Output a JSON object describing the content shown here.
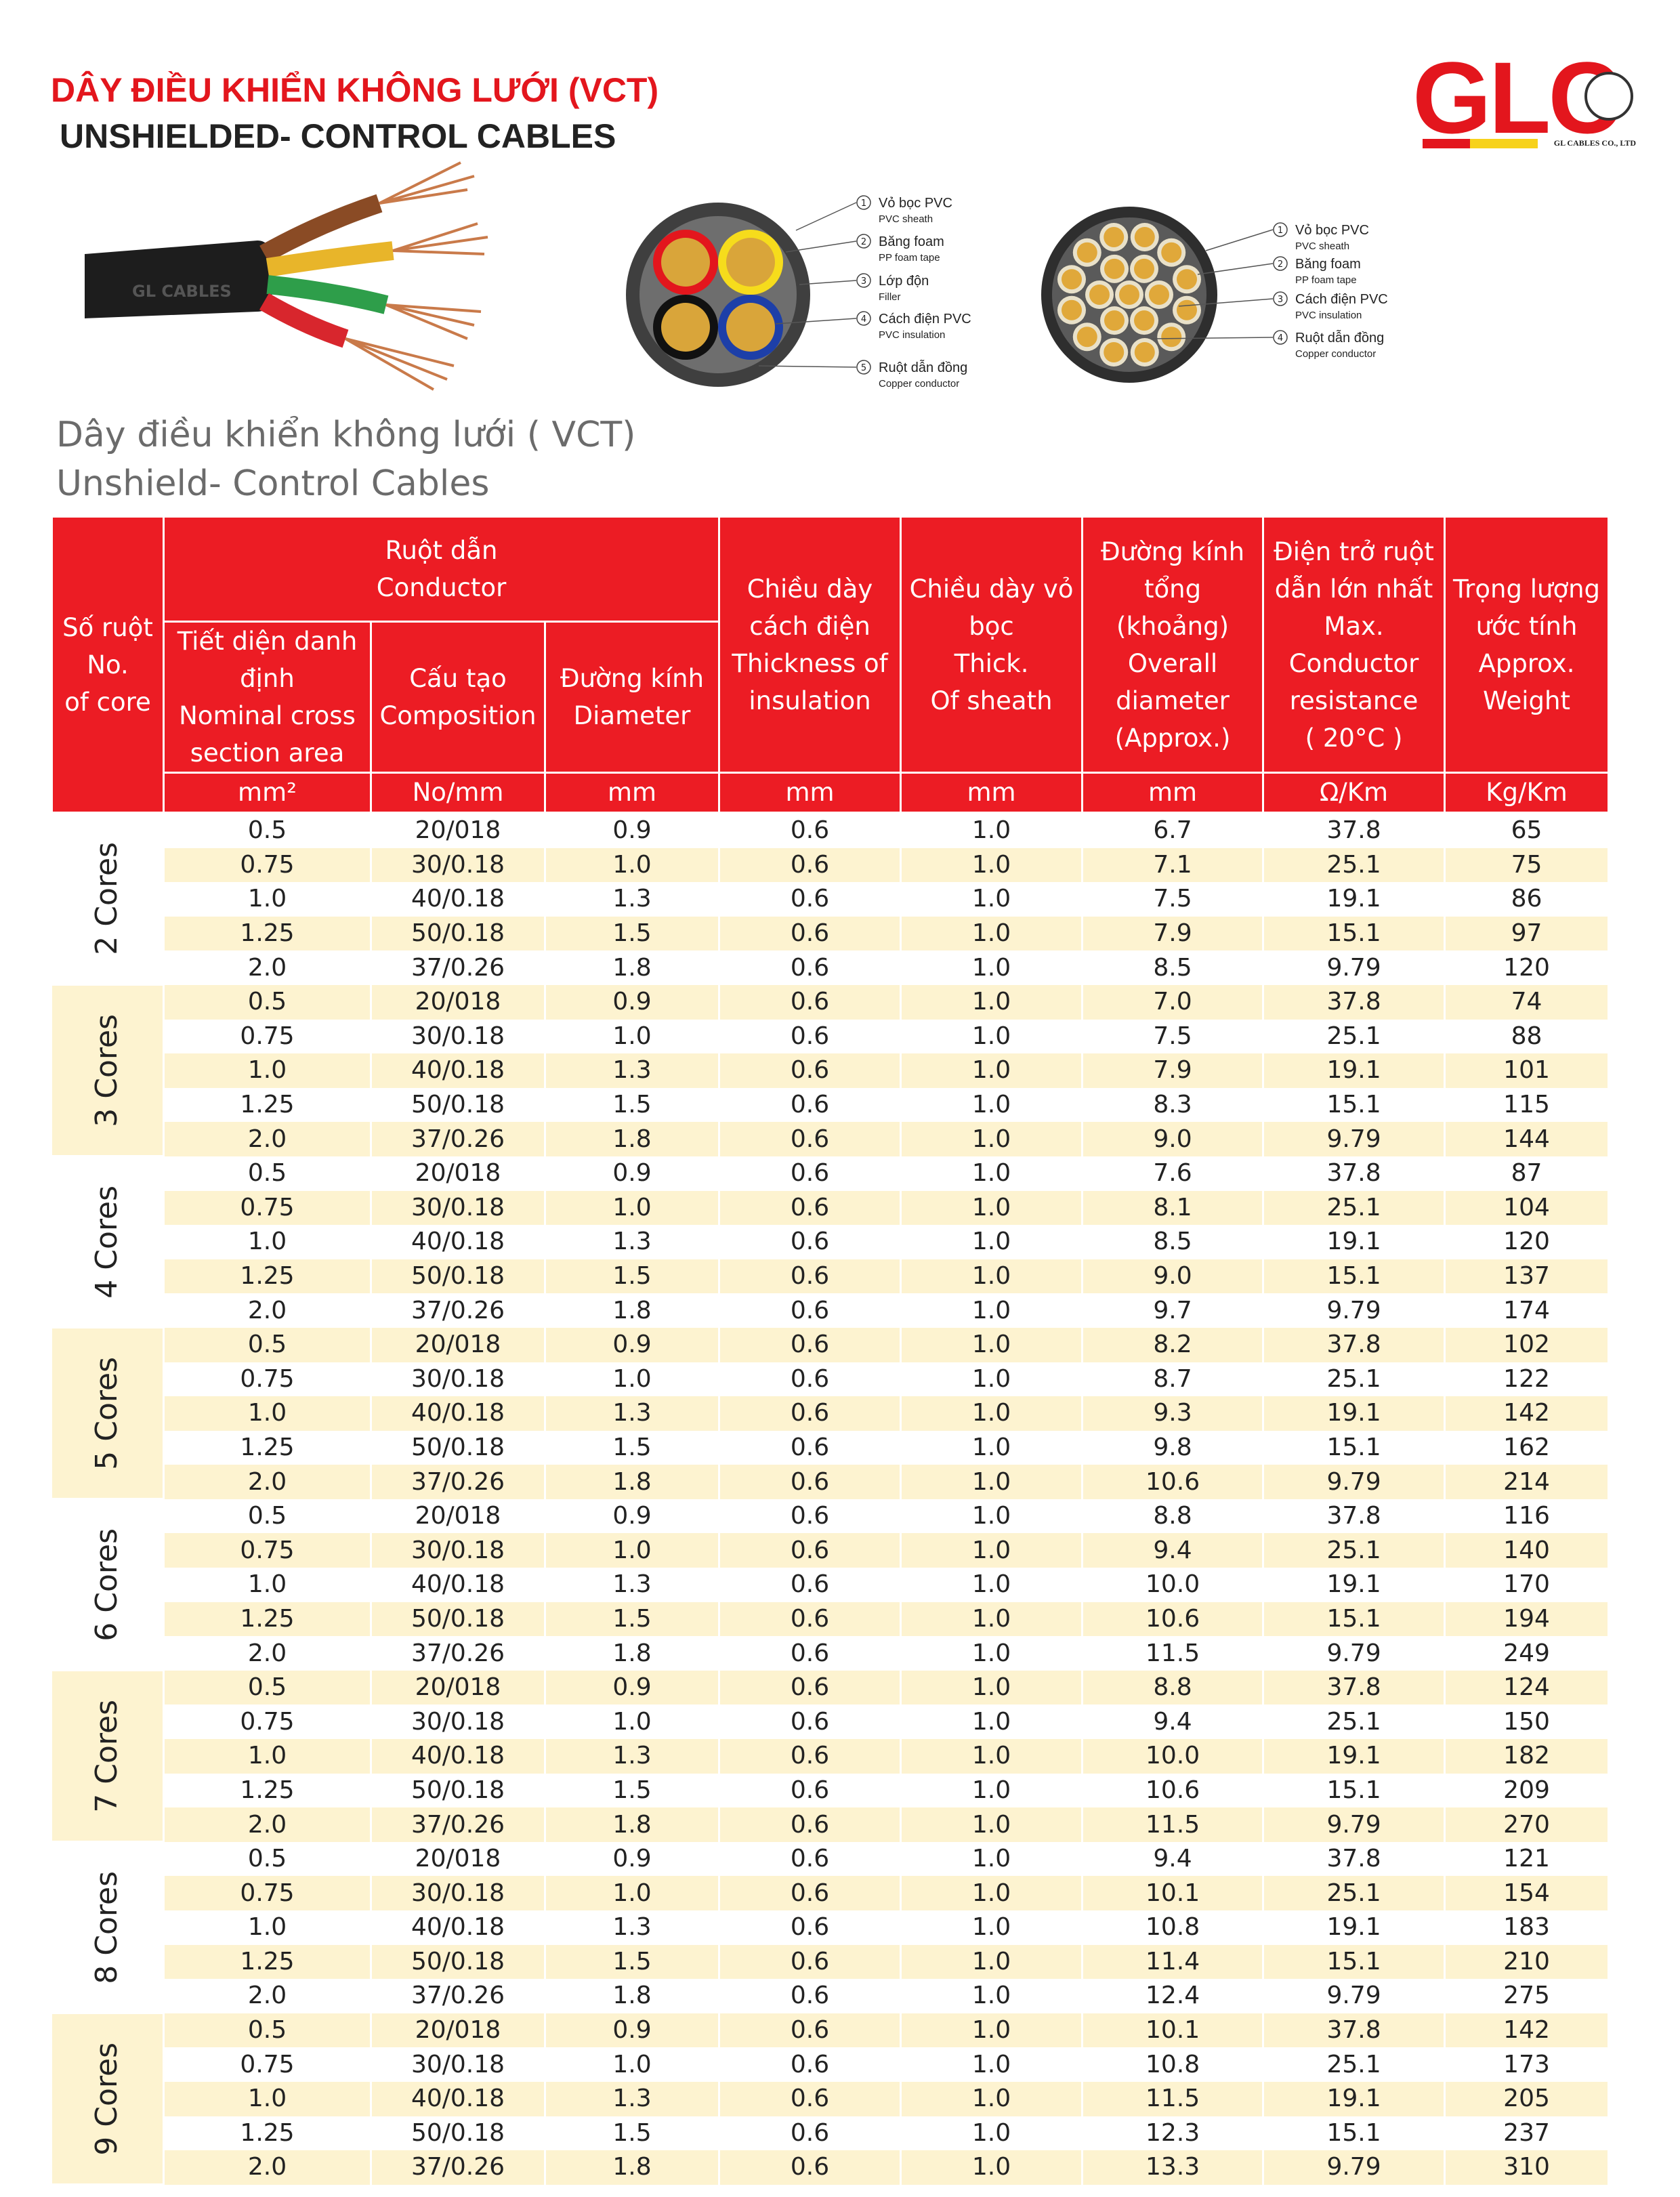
{
  "header": {
    "title_vi": "DÂY ĐIỀU KHIỂN KHÔNG LƯỚI (VCT)",
    "title_en": "UNSHIELDED- CONTROL CABLES"
  },
  "logo": {
    "name": "GLC",
    "company": "GL CABLES CO., LTD"
  },
  "cable_photo": {
    "print": "GL CABLES"
  },
  "diagrams": [
    {
      "labels": [
        {
          "num": "1",
          "vi": "Vỏ bọc PVC",
          "en": "PVC sheath"
        },
        {
          "num": "2",
          "vi": "Băng foam",
          "en": "PP foam tape"
        },
        {
          "num": "3",
          "vi": "Lớp độn",
          "en": "Filler"
        },
        {
          "num": "4",
          "vi": "Cách điện PVC",
          "en": "PVC insulation"
        },
        {
          "num": "5",
          "vi": "Ruột dẫn đồng",
          "en": "Copper conductor"
        }
      ]
    },
    {
      "labels": [
        {
          "num": "1",
          "vi": "Vỏ bọc PVC",
          "en": "PVC sheath"
        },
        {
          "num": "2",
          "vi": "Băng foam",
          "en": "PP foam tape"
        },
        {
          "num": "3",
          "vi": "Cách điện PVC",
          "en": "PVC insulation"
        },
        {
          "num": "4",
          "vi": "Ruột dẫn đồng",
          "en": "Copper conductor"
        }
      ]
    }
  ],
  "subtitle": {
    "vi": "Dây điều khiển không lưới ( VCT)",
    "en": "Unshield- Control Cables"
  },
  "table": {
    "headers": {
      "core": [
        "Số ruột",
        "No.",
        "of core"
      ],
      "conductor": [
        "Ruột dẫn",
        "Conductor"
      ],
      "area": [
        "Tiết diện danh",
        "định",
        "Nominal cross",
        "section area"
      ],
      "composition": [
        "Cấu tạo",
        "Composition"
      ],
      "diameter": [
        "Đường kính",
        "Diameter"
      ],
      "insulation": [
        "Chiều dày",
        "cách điện",
        "Thickness of",
        "insulation"
      ],
      "sheath": [
        "Chiều dày vỏ",
        "bọc",
        "Thick.",
        "Of sheath"
      ],
      "overall": [
        "Đường kính",
        "tổng",
        "(khoảng)",
        "Overall",
        "diameter",
        "(Approx.)"
      ],
      "resistance": [
        "Điện trở ruột",
        "dẫn lớn nhất",
        "Max.",
        "Conductor",
        "resistance",
        "( 20°C )"
      ],
      "weight": [
        "Trọng lượng",
        "ước tính",
        "Approx.",
        "Weight"
      ]
    },
    "units": [
      "mm²",
      "No/mm",
      "mm",
      "mm",
      "mm",
      "mm",
      "Ω/Km",
      "Kg/Km"
    ],
    "groups": [
      {
        "name": "2 Cores",
        "rows": [
          [
            "0.5",
            "20/018",
            "0.9",
            "0.6",
            "1.0",
            "6.7",
            "37.8",
            "65"
          ],
          [
            "0.75",
            "30/0.18",
            "1.0",
            "0.6",
            "1.0",
            "7.1",
            "25.1",
            "75"
          ],
          [
            "1.0",
            "40/0.18",
            "1.3",
            "0.6",
            "1.0",
            "7.5",
            "19.1",
            "86"
          ],
          [
            "1.25",
            "50/0.18",
            "1.5",
            "0.6",
            "1.0",
            "7.9",
            "15.1",
            "97"
          ],
          [
            "2.0",
            "37/0.26",
            "1.8",
            "0.6",
            "1.0",
            "8.5",
            "9.79",
            "120"
          ]
        ]
      },
      {
        "name": "3 Cores",
        "rows": [
          [
            "0.5",
            "20/018",
            "0.9",
            "0.6",
            "1.0",
            "7.0",
            "37.8",
            "74"
          ],
          [
            "0.75",
            "30/0.18",
            "1.0",
            "0.6",
            "1.0",
            "7.5",
            "25.1",
            "88"
          ],
          [
            "1.0",
            "40/0.18",
            "1.3",
            "0.6",
            "1.0",
            "7.9",
            "19.1",
            "101"
          ],
          [
            "1.25",
            "50/0.18",
            "1.5",
            "0.6",
            "1.0",
            "8.3",
            "15.1",
            "115"
          ],
          [
            "2.0",
            "37/0.26",
            "1.8",
            "0.6",
            "1.0",
            "9.0",
            "9.79",
            "144"
          ]
        ]
      },
      {
        "name": "4 Cores",
        "rows": [
          [
            "0.5",
            "20/018",
            "0.9",
            "0.6",
            "1.0",
            "7.6",
            "37.8",
            "87"
          ],
          [
            "0.75",
            "30/0.18",
            "1.0",
            "0.6",
            "1.0",
            "8.1",
            "25.1",
            "104"
          ],
          [
            "1.0",
            "40/0.18",
            "1.3",
            "0.6",
            "1.0",
            "8.5",
            "19.1",
            "120"
          ],
          [
            "1.25",
            "50/0.18",
            "1.5",
            "0.6",
            "1.0",
            "9.0",
            "15.1",
            "137"
          ],
          [
            "2.0",
            "37/0.26",
            "1.8",
            "0.6",
            "1.0",
            "9.7",
            "9.79",
            "174"
          ]
        ]
      },
      {
        "name": "5 Cores",
        "rows": [
          [
            "0.5",
            "20/018",
            "0.9",
            "0.6",
            "1.0",
            "8.2",
            "37.8",
            "102"
          ],
          [
            "0.75",
            "30/0.18",
            "1.0",
            "0.6",
            "1.0",
            "8.7",
            "25.1",
            "122"
          ],
          [
            "1.0",
            "40/0.18",
            "1.3",
            "0.6",
            "1.0",
            "9.3",
            "19.1",
            "142"
          ],
          [
            "1.25",
            "50/0.18",
            "1.5",
            "0.6",
            "1.0",
            "9.8",
            "15.1",
            "162"
          ],
          [
            "2.0",
            "37/0.26",
            "1.8",
            "0.6",
            "1.0",
            "10.6",
            "9.79",
            "214"
          ]
        ]
      },
      {
        "name": "6 Cores",
        "rows": [
          [
            "0.5",
            "20/018",
            "0.9",
            "0.6",
            "1.0",
            "8.8",
            "37.8",
            "116"
          ],
          [
            "0.75",
            "30/0.18",
            "1.0",
            "0.6",
            "1.0",
            "9.4",
            "25.1",
            "140"
          ],
          [
            "1.0",
            "40/0.18",
            "1.3",
            "0.6",
            "1.0",
            "10.0",
            "19.1",
            "170"
          ],
          [
            "1.25",
            "50/0.18",
            "1.5",
            "0.6",
            "1.0",
            "10.6",
            "15.1",
            "194"
          ],
          [
            "2.0",
            "37/0.26",
            "1.8",
            "0.6",
            "1.0",
            "11.5",
            "9.79",
            "249"
          ]
        ]
      },
      {
        "name": "7 Cores",
        "rows": [
          [
            "0.5",
            "20/018",
            "0.9",
            "0.6",
            "1.0",
            "8.8",
            "37.8",
            "124"
          ],
          [
            "0.75",
            "30/0.18",
            "1.0",
            "0.6",
            "1.0",
            "9.4",
            "25.1",
            "150"
          ],
          [
            "1.0",
            "40/0.18",
            "1.3",
            "0.6",
            "1.0",
            "10.0",
            "19.1",
            "182"
          ],
          [
            "1.25",
            "50/0.18",
            "1.5",
            "0.6",
            "1.0",
            "10.6",
            "15.1",
            "209"
          ],
          [
            "2.0",
            "37/0.26",
            "1.8",
            "0.6",
            "1.0",
            "11.5",
            "9.79",
            "270"
          ]
        ]
      },
      {
        "name": "8 Cores",
        "rows": [
          [
            "0.5",
            "20/018",
            "0.9",
            "0.6",
            "1.0",
            "9.4",
            "37.8",
            "121"
          ],
          [
            "0.75",
            "30/0.18",
            "1.0",
            "0.6",
            "1.0",
            "10.1",
            "25.1",
            "154"
          ],
          [
            "1.0",
            "40/0.18",
            "1.3",
            "0.6",
            "1.0",
            "10.8",
            "19.1",
            "183"
          ],
          [
            "1.25",
            "50/0.18",
            "1.5",
            "0.6",
            "1.0",
            "11.4",
            "15.1",
            "210"
          ],
          [
            "2.0",
            "37/0.26",
            "1.8",
            "0.6",
            "1.0",
            "12.4",
            "9.79",
            "275"
          ]
        ]
      },
      {
        "name": "9 Cores",
        "rows": [
          [
            "0.5",
            "20/018",
            "0.9",
            "0.6",
            "1.0",
            "10.1",
            "37.8",
            "142"
          ],
          [
            "0.75",
            "30/0.18",
            "1.0",
            "0.6",
            "1.0",
            "10.8",
            "25.1",
            "173"
          ],
          [
            "1.0",
            "40/0.18",
            "1.3",
            "0.6",
            "1.0",
            "11.5",
            "19.1",
            "205"
          ],
          [
            "1.25",
            "50/0.18",
            "1.5",
            "0.6",
            "1.0",
            "12.3",
            "15.1",
            "237"
          ],
          [
            "2.0",
            "37/0.26",
            "1.8",
            "0.6",
            "1.0",
            "13.3",
            "9.79",
            "310"
          ]
        ]
      }
    ]
  }
}
